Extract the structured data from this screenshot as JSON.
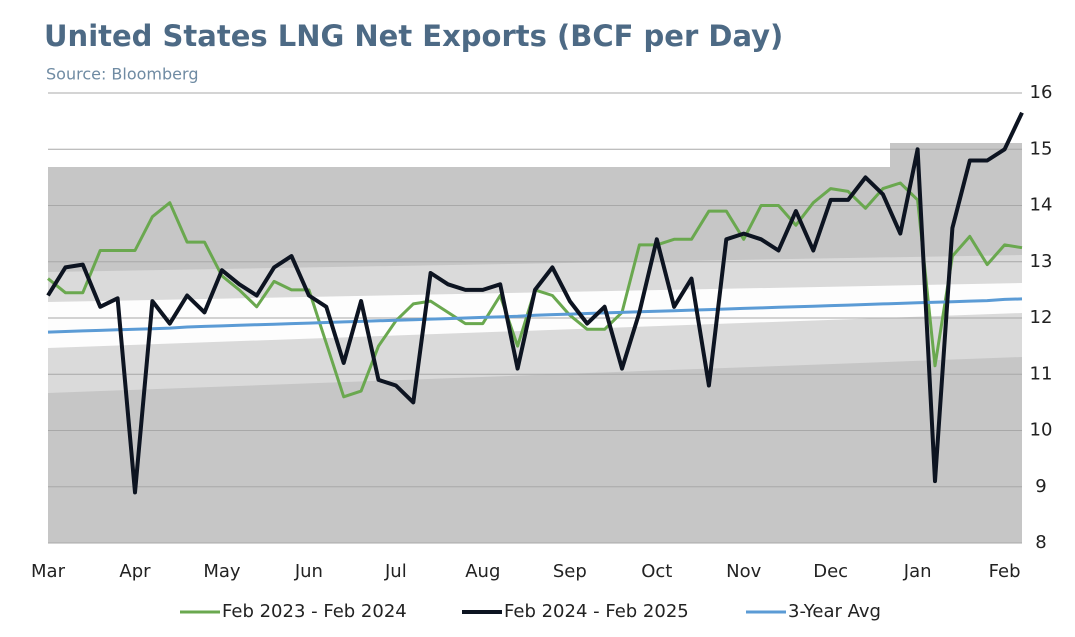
{
  "chart_data": {
    "type": "line",
    "title": "United States LNG Net Exports (BCF per Day)",
    "subtitle": "Source: Bloomberg",
    "categories": [
      "Mar",
      null,
      null,
      null,
      null,
      "Apr",
      null,
      null,
      null,
      null,
      "May",
      null,
      null,
      null,
      null,
      "Jun",
      null,
      null,
      null,
      null,
      "Jul",
      null,
      null,
      null,
      null,
      "Aug",
      null,
      null,
      null,
      null,
      "Sep",
      null,
      null,
      null,
      null,
      "Oct",
      null,
      null,
      null,
      null,
      "Nov",
      null,
      null,
      null,
      null,
      "Dec",
      null,
      null,
      null,
      null,
      "Jan",
      null,
      null,
      null,
      null,
      "Feb",
      null
    ],
    "series": [
      {
        "name": "Feb 2023 - Feb 2024",
        "color": "#6aa84f",
        "values": [
          12.7,
          12.45,
          12.45,
          13.2,
          13.2,
          13.2,
          13.8,
          14.05,
          13.35,
          13.35,
          12.75,
          12.5,
          12.2,
          12.65,
          12.5,
          12.5,
          11.55,
          10.6,
          10.7,
          11.5,
          11.95,
          12.25,
          12.3,
          12.1,
          11.9,
          11.9,
          12.4,
          11.5,
          12.5,
          12.4,
          12.05,
          11.8,
          11.8,
          12.1,
          13.3,
          13.3,
          13.4,
          13.4,
          13.9,
          13.9,
          13.4,
          14.0,
          14.0,
          13.65,
          14.05,
          14.3,
          14.25,
          13.95,
          14.3,
          14.4,
          14.1,
          11.15,
          13.1,
          13.45,
          12.95,
          13.3,
          13.25
        ]
      },
      {
        "name": "Feb 2024 - Feb 2025",
        "color": "#0d1421",
        "values": [
          12.4,
          12.9,
          12.95,
          12.2,
          12.35,
          8.9,
          12.3,
          11.9,
          12.4,
          12.1,
          12.85,
          12.6,
          12.4,
          12.9,
          13.1,
          12.4,
          12.2,
          11.2,
          12.3,
          10.9,
          10.8,
          10.5,
          12.8,
          12.6,
          12.5,
          12.5,
          12.6,
          11.1,
          12.5,
          12.9,
          12.3,
          11.9,
          12.2,
          11.1,
          12.1,
          13.4,
          12.2,
          12.7,
          10.8,
          13.4,
          13.5,
          13.4,
          13.2,
          13.9,
          13.2,
          14.1,
          14.1,
          14.5,
          14.2,
          13.5,
          15.0,
          9.1,
          13.6,
          14.8,
          14.8,
          15.0,
          15.65
        ]
      },
      {
        "name": "3-Year Avg",
        "color": "#5b9bd5",
        "values": [
          11.75,
          11.76,
          11.77,
          11.78,
          11.79,
          11.8,
          11.81,
          11.82,
          11.84,
          11.85,
          11.86,
          11.87,
          11.88,
          11.89,
          11.9,
          11.91,
          11.92,
          11.93,
          11.94,
          11.95,
          11.96,
          11.97,
          11.98,
          11.99,
          12.0,
          12.01,
          12.02,
          12.03,
          12.05,
          12.06,
          12.07,
          12.08,
          12.09,
          12.1,
          12.11,
          12.12,
          12.13,
          12.14,
          12.15,
          12.16,
          12.17,
          12.18,
          12.19,
          12.2,
          12.21,
          12.22,
          12.23,
          12.24,
          12.25,
          12.26,
          12.27,
          12.28,
          12.29,
          12.3,
          12.31,
          12.33,
          12.34
        ]
      }
    ],
    "ylim": [
      8,
      16
    ],
    "yticks": [
      8,
      9,
      10,
      11,
      12,
      13,
      14,
      15,
      16
    ],
    "grid": true
  }
}
